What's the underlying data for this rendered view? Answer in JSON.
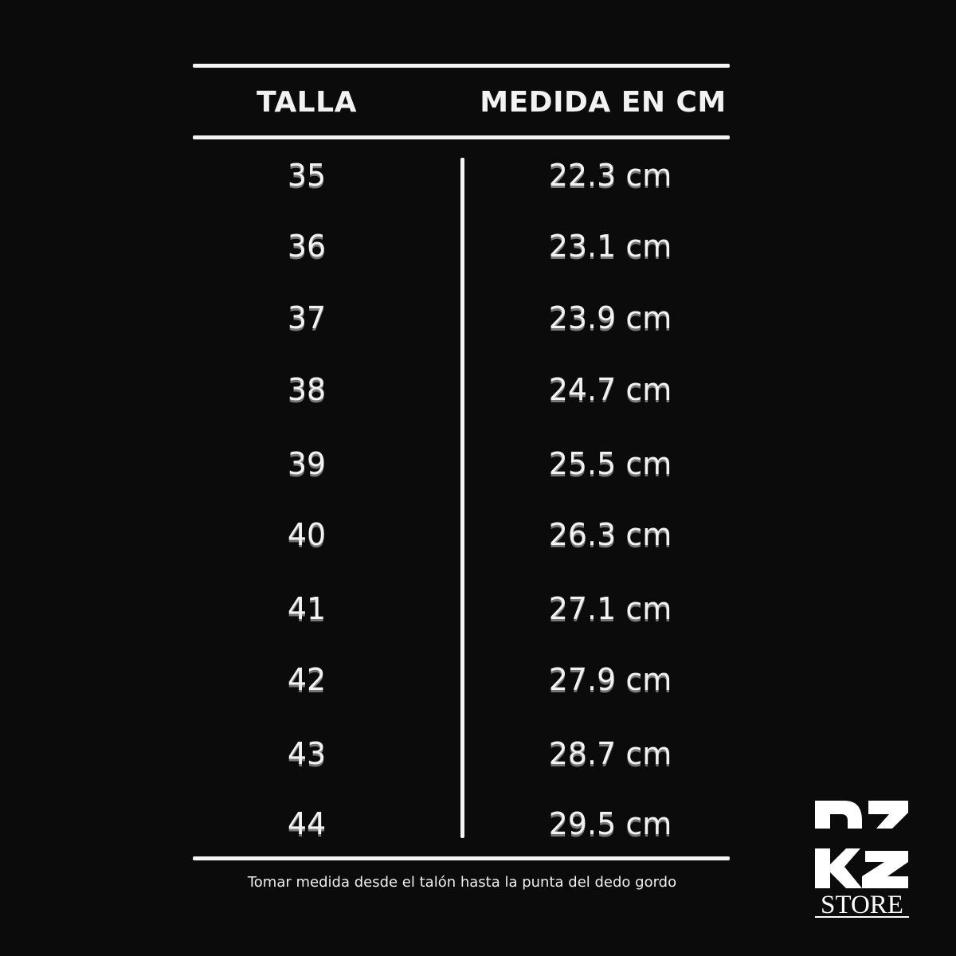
{
  "table": {
    "headers": [
      "TALLA",
      "MEDIDA EN CM"
    ],
    "rows": [
      {
        "talla": "35",
        "medida": "22.3 cm"
      },
      {
        "talla": "36",
        "medida": "23.1 cm"
      },
      {
        "talla": "37",
        "medida": "23.9 cm"
      },
      {
        "talla": "38",
        "medida": "24.7 cm"
      },
      {
        "talla": "39",
        "medida": "25.5 cm"
      },
      {
        "talla": "40",
        "medida": "26.3 cm"
      },
      {
        "talla": "41",
        "medida": "27.1 cm"
      },
      {
        "talla": "42",
        "medida": "27.9 cm"
      },
      {
        "talla": "43",
        "medida": "28.7 cm"
      },
      {
        "talla": "44",
        "medida": "29.5 cm"
      }
    ]
  },
  "footer": {
    "note": "Tomar medida desde el talón hasta la punta del dedo gordo"
  },
  "logo": {
    "mark": "DZ RZ",
    "store": "STORE"
  },
  "colors": {
    "background": "#0b0b0b",
    "foreground": "#f5f5f5"
  }
}
